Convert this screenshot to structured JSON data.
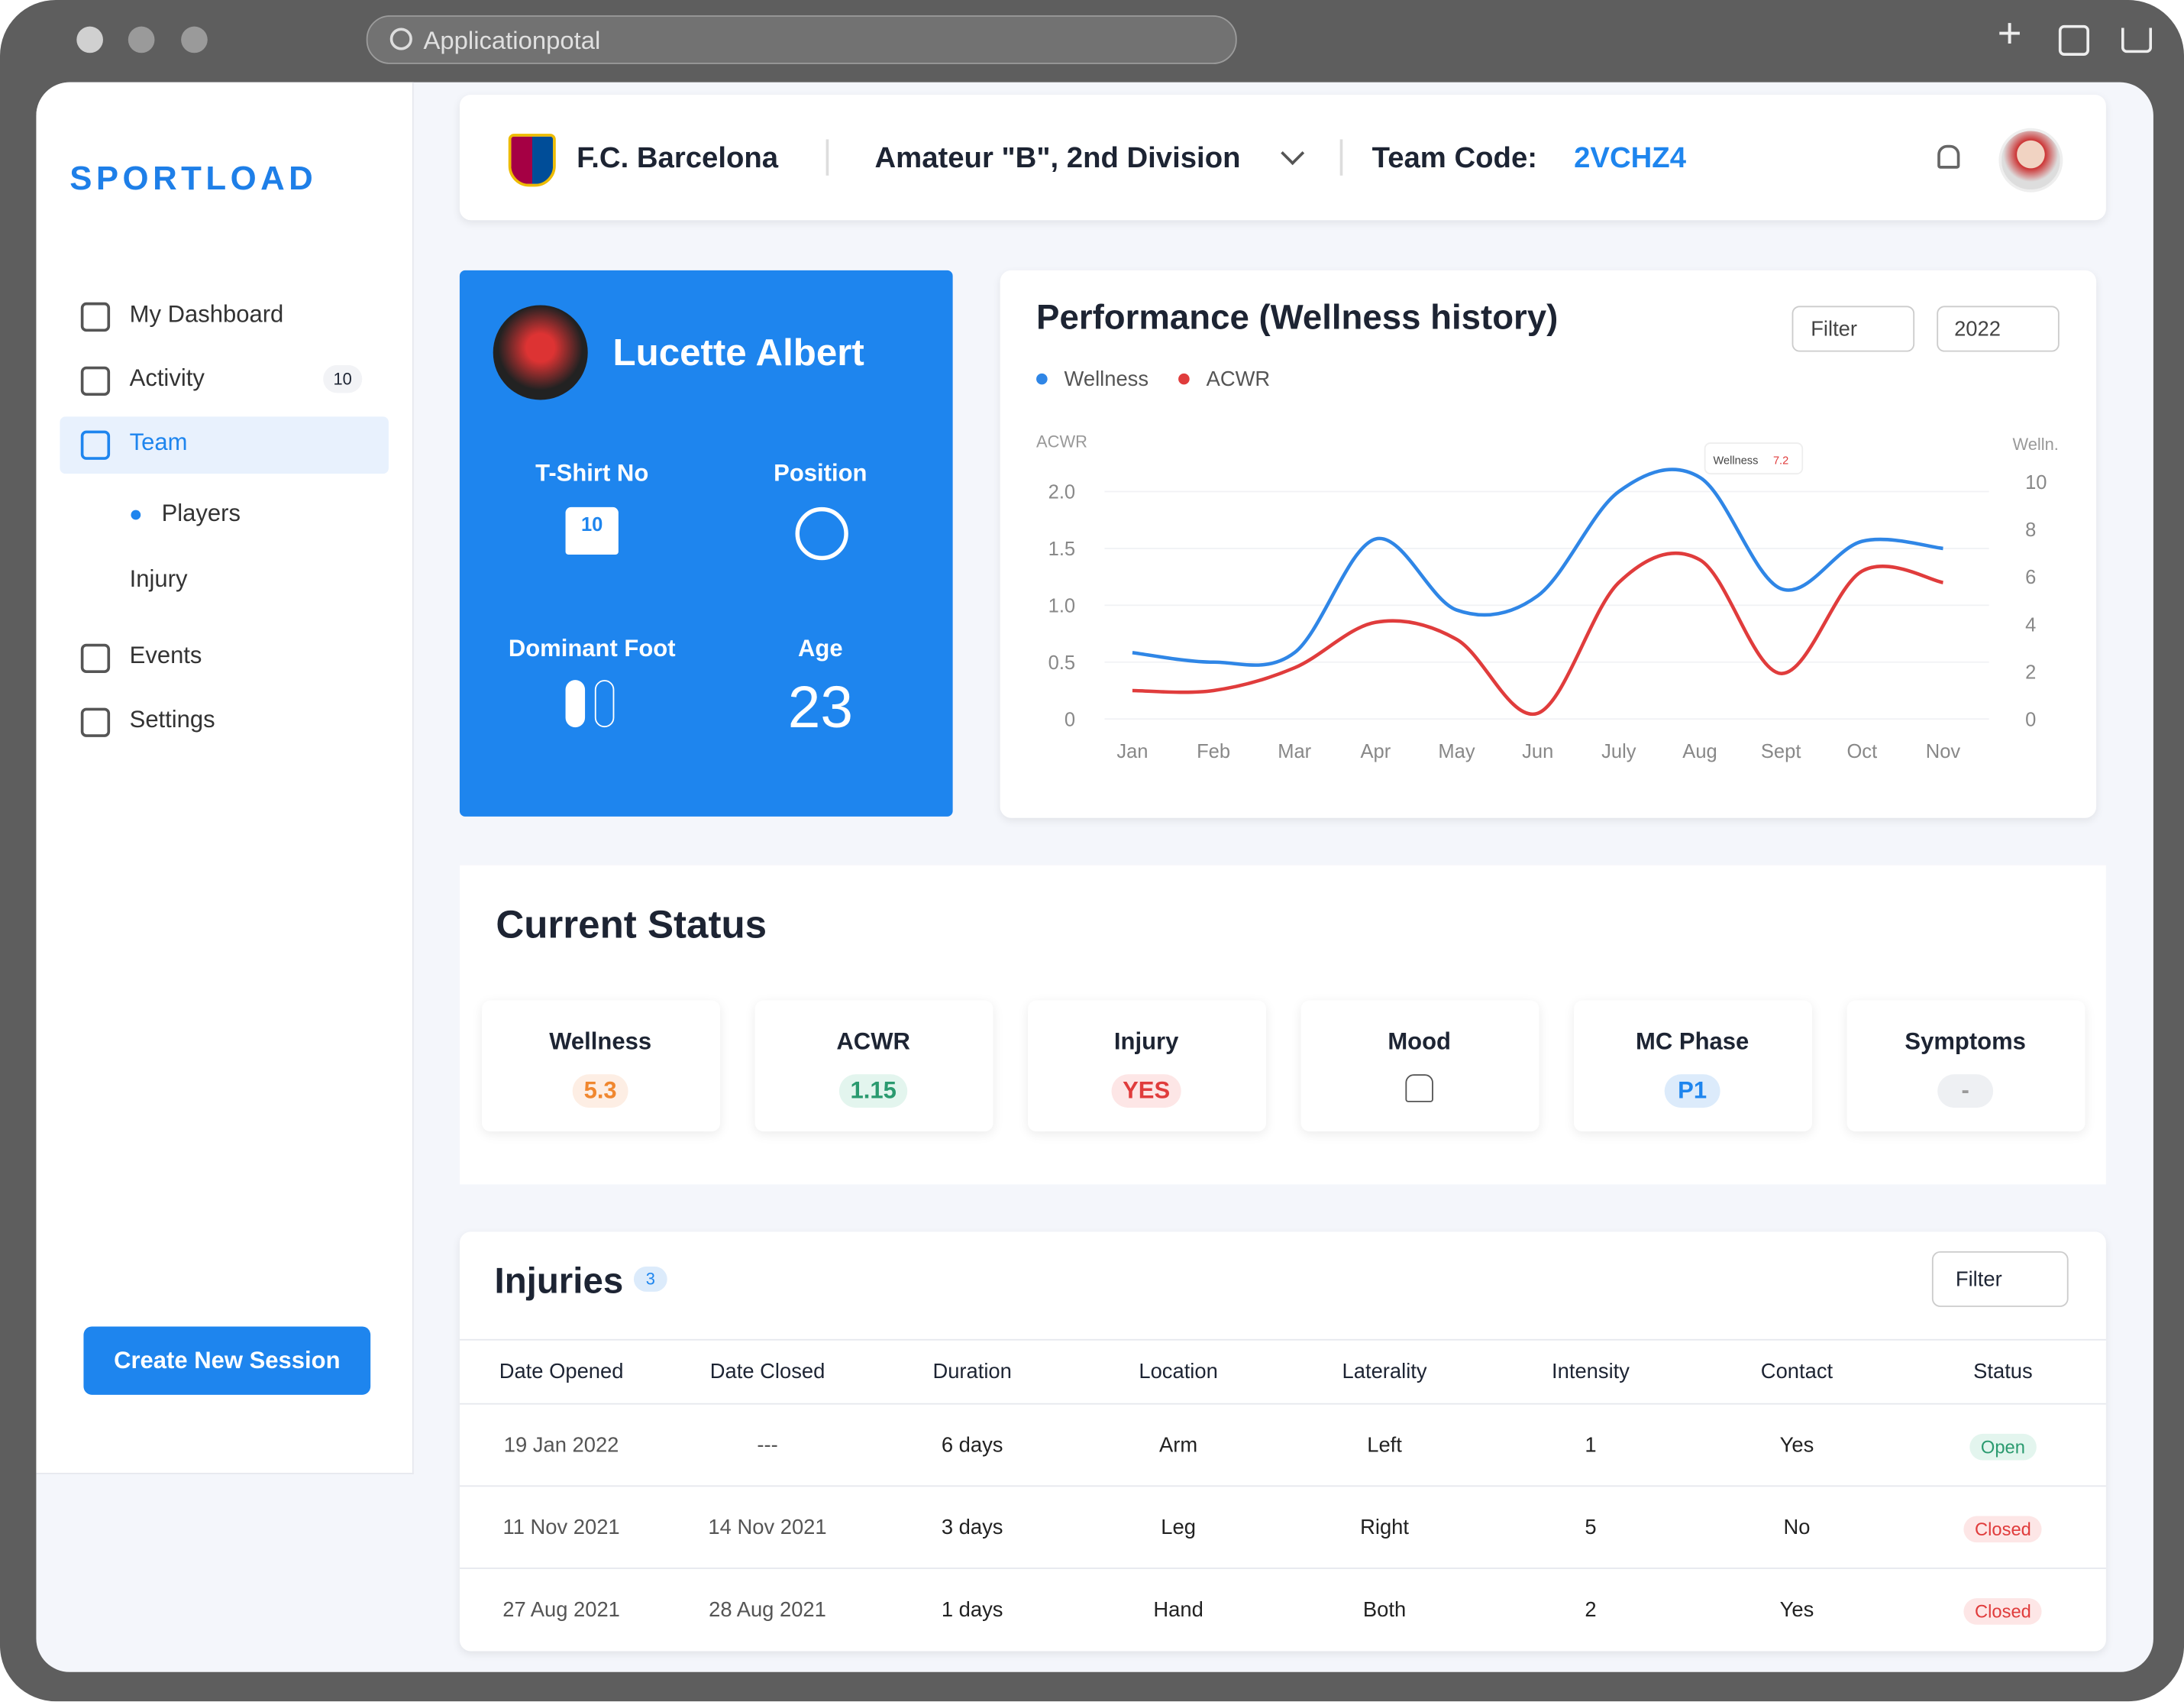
{
  "browser": {
    "url": "Applicationpotal"
  },
  "sidebar": {
    "logo": "SPORTLOAD",
    "nav": [
      {
        "label": "My Dashboard"
      },
      {
        "label": "Activity",
        "badge": 10
      },
      {
        "label": "Team"
      },
      {
        "label": "Players"
      },
      {
        "label": "Injury"
      },
      {
        "label": "Events"
      },
      {
        "label": "Settings"
      }
    ],
    "button": "Create New Session"
  },
  "header": {
    "team": "F.C. Barcelona",
    "division": "Amateur \"B\", 2nd Division",
    "code_label": "Team Code:",
    "code": "2VCHZ4"
  },
  "player": {
    "name": "Lucette Albert",
    "shirt_label": "T-Shirt No",
    "shirt_number": 10,
    "position_label": "Position",
    "foot_label": "Dominant Foot",
    "age_label": "Age",
    "age": 23
  },
  "chart_data": {
    "type": "line",
    "title": "Performance (Wellness history)",
    "filter": "Filter",
    "year": "2022",
    "y_label": "ACWR",
    "y2_label": "Welln.",
    "categories": [
      "Jan",
      "Feb",
      "Mar",
      "Apr",
      "May",
      "Jun",
      "July",
      "Aug",
      "Sept",
      "Oct",
      "Nov"
    ],
    "series": [
      {
        "name": "Wellness",
        "color": "#2f86e6",
        "axis": "y2",
        "values": [
          2.8,
          2.4,
          2.8,
          7.6,
          4.6,
          5.2,
          9.6,
          10.2,
          5.5,
          7.5,
          7.2
        ]
      },
      {
        "name": "ACWR",
        "color": "#e03c3c",
        "values": [
          0.25,
          0.25,
          0.45,
          0.85,
          0.7,
          0.05,
          1.2,
          1.4,
          0.4,
          1.3,
          1.2
        ]
      }
    ],
    "ylim": [
      0,
      2.5
    ],
    "yticks": [
      0,
      0.5,
      {
        "value": 1,
        "label": "1.0"
      },
      1.5,
      {
        "value": 2,
        "label": "2.0"
      }
    ],
    "y2lim": [
      0,
      12
    ],
    "y2ticks": [
      0,
      2,
      4,
      6,
      8,
      10
    ],
    "tooltip": {
      "label": "Wellness",
      "value": 7.2
    }
  },
  "status": {
    "title": "Current Status",
    "cards": [
      {
        "label": "Wellness",
        "value": "5.3"
      },
      {
        "label": "ACWR",
        "value": "1.15"
      },
      {
        "label": "Injury",
        "value": "YES"
      },
      {
        "label": "Mood"
      },
      {
        "label": "MC Phase",
        "value": "P1"
      },
      {
        "label": "Symptoms",
        "value": "-"
      }
    ]
  },
  "injuries": {
    "title": "Injuries",
    "count": 3,
    "filter": "Filter",
    "columns": [
      "Date Opened",
      "Date Closed",
      "Duration",
      "Location",
      "Laterality",
      "Intensity",
      "Contact",
      "Status"
    ],
    "rows": [
      [
        "19 Jan 2022",
        "---",
        "6 days",
        "Arm",
        "Left",
        "1",
        "Yes",
        "Open"
      ],
      [
        "11 Nov 2021",
        "14 Nov 2021",
        "3 days",
        "Leg",
        "Right",
        "5",
        "No",
        "Closed"
      ],
      [
        "27 Aug 2021",
        "28 Aug 2021",
        "1 days",
        "Hand",
        "Both",
        "2",
        "Yes",
        "Closed"
      ]
    ]
  }
}
